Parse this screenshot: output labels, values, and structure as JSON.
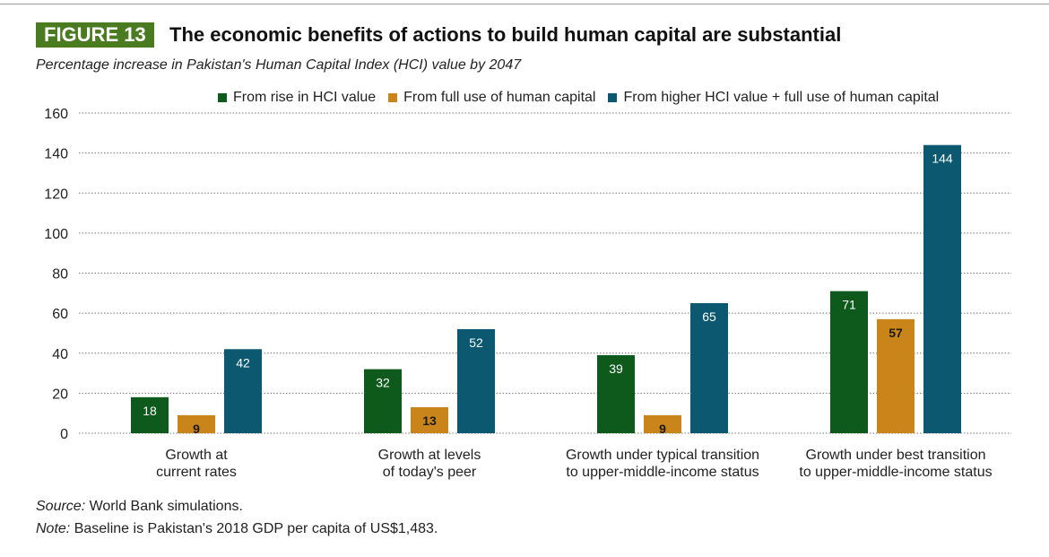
{
  "figure_label": "FIGURE 13",
  "title": "The economic benefits of actions to build human capital are substantial",
  "subtitle": "Percentage increase in Pakistan's Human Capital Index (HCI) value by 2047",
  "source_label": "Source:",
  "source_text": "World Bank simulations.",
  "note_label": "Note:",
  "note_text": "Baseline is Pakistan's 2018 GDP per capita of US$1,483.",
  "chart_data": {
    "type": "bar",
    "title": "The economic benefits of actions to build human capital are substantial",
    "xlabel": "",
    "ylabel": "",
    "ylim": [
      0,
      160
    ],
    "yticks": [
      0,
      20,
      40,
      60,
      80,
      100,
      120,
      140,
      160
    ],
    "grid": true,
    "legend_placement": "top-right",
    "categories": [
      [
        "Growth at",
        "current rates"
      ],
      [
        "Growth at levels",
        "of today's peer"
      ],
      [
        "Growth under typical transition",
        "to upper-middle-income status"
      ],
      [
        "Growth under best transition",
        "to upper-middle-income status"
      ]
    ],
    "series": [
      {
        "name": "From rise in HCI value",
        "color": "#0e5a1c",
        "label_color": "#ffffff",
        "values": [
          18,
          32,
          39,
          71
        ]
      },
      {
        "name": "From full use of human capital",
        "color": "#c98519",
        "label_color": "#1a1a1a",
        "values": [
          9,
          13,
          9,
          57
        ]
      },
      {
        "name": "From higher HCI value + full use of human capital",
        "color": "#0b5870",
        "label_color": "#ffffff",
        "values": [
          42,
          52,
          65,
          144
        ]
      }
    ]
  }
}
